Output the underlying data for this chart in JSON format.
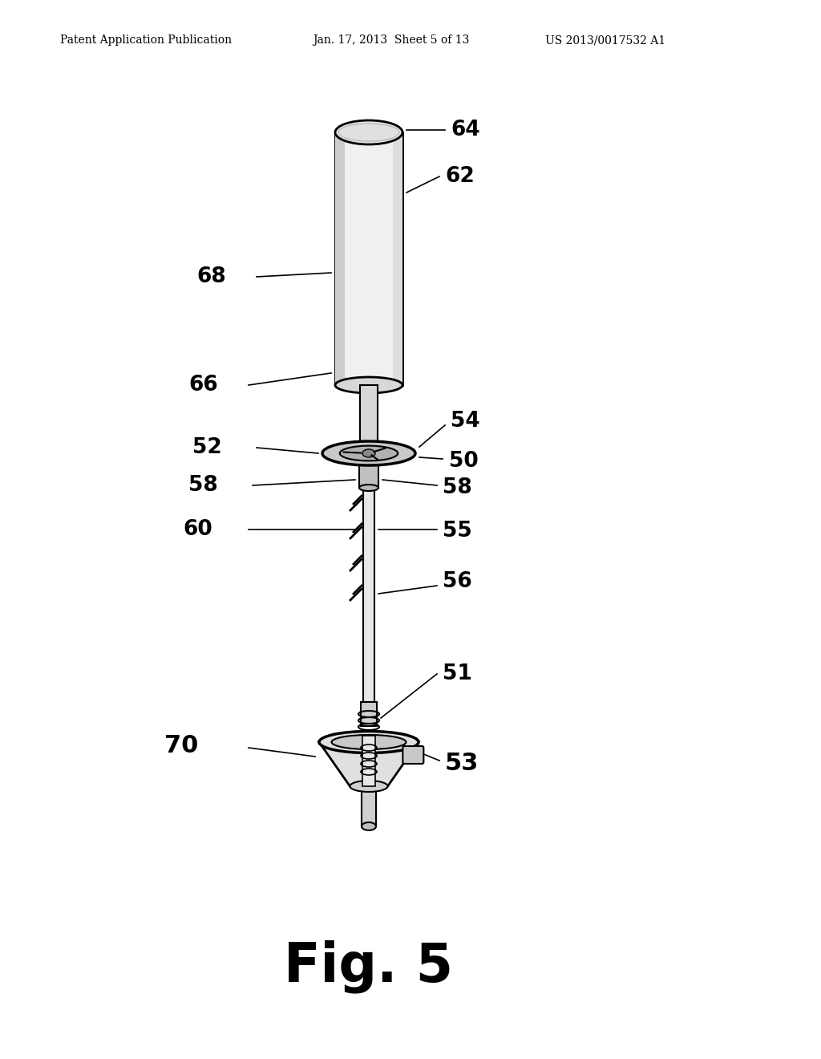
{
  "background_color": "#ffffff",
  "header_left": "Patent Application Publication",
  "header_mid": "Jan. 17, 2013  Sheet 5 of 13",
  "header_right": "US 2013/0017532 A1",
  "fig_label": "Fig. 5"
}
